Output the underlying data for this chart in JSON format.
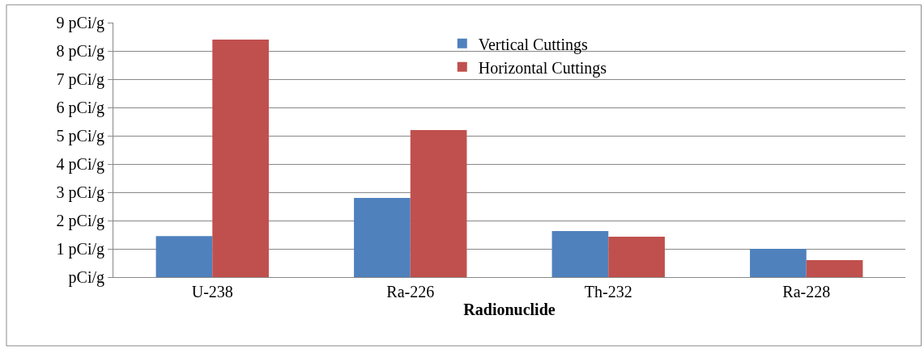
{
  "chart_data": {
    "type": "bar",
    "xlabel": "Radionuclide",
    "categories": [
      "U-238",
      "Ra-226",
      "Th-232",
      "Ra-228"
    ],
    "series": [
      {
        "name": "Vertical Cuttings",
        "color": "#4f81bd",
        "values": [
          1.45,
          2.8,
          1.63,
          1.0
        ]
      },
      {
        "name": "Horizontal Cuttings",
        "color": "#c0504d",
        "values": [
          8.4,
          5.2,
          1.43,
          0.6
        ]
      }
    ],
    "ylim": [
      0,
      9
    ],
    "yticks": [
      {
        "value": 0,
        "label": "pCi/g"
      },
      {
        "value": 1,
        "label": "1 pCi/g"
      },
      {
        "value": 2,
        "label": "2 pCi/g"
      },
      {
        "value": 3,
        "label": "3 pCi/g"
      },
      {
        "value": 4,
        "label": "4 pCi/g"
      },
      {
        "value": 5,
        "label": "5 pCi/g"
      },
      {
        "value": 6,
        "label": "6 pCi/g"
      },
      {
        "value": 7,
        "label": "7 pCi/g"
      },
      {
        "value": 8,
        "label": "8 pCi/g"
      },
      {
        "value": 9,
        "label": "9 pCi/g"
      }
    ],
    "grid": "y",
    "legend": "top"
  }
}
